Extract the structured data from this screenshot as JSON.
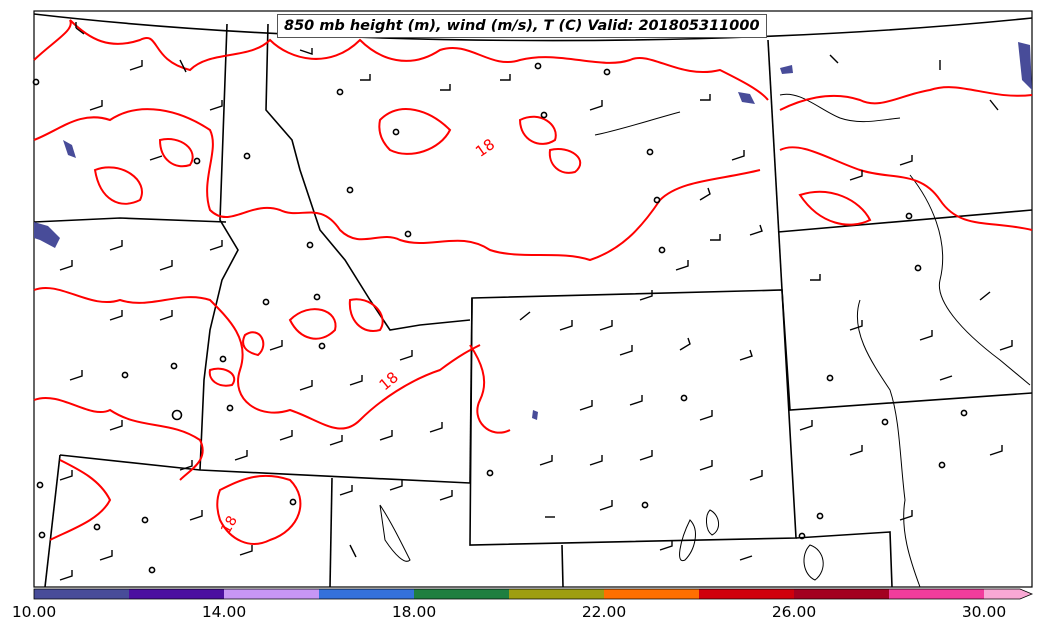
{
  "title": "850 mb height (m), wind (m/s), T (C) Valid: 201805311000",
  "temperature_contour_labels": [
    "18",
    "18",
    "18"
  ],
  "colorbar": {
    "tick_labels": [
      "10.00",
      "14.00",
      "18.00",
      "22.00",
      "26.00",
      "30.00"
    ],
    "min": 10,
    "max": 31,
    "bins": [
      {
        "from": 10,
        "to": 12,
        "color": "#484c99"
      },
      {
        "from": 12,
        "to": 14,
        "color": "#4b0fa0"
      },
      {
        "from": 14,
        "to": 16,
        "color": "#c796f5"
      },
      {
        "from": 16,
        "to": 18,
        "color": "#3471db"
      },
      {
        "from": 18,
        "to": 20,
        "color": "#1f7f40"
      },
      {
        "from": 20,
        "to": 22,
        "color": "#9e9e10"
      },
      {
        "from": 22,
        "to": 24,
        "color": "#ff6f00"
      },
      {
        "from": 24,
        "to": 26,
        "color": "#d0000c"
      },
      {
        "from": 26,
        "to": 28,
        "color": "#a30020"
      },
      {
        "from": 28,
        "to": 30,
        "color": "#f23c9c"
      },
      {
        "from": 30,
        "to": 31,
        "color": "#f9a8d4"
      }
    ]
  },
  "colors": {
    "temperature_contour": "#ff0000",
    "boundaries": "#000000",
    "wind_barbs": "#000000",
    "shaded_low": "#484c99"
  }
}
